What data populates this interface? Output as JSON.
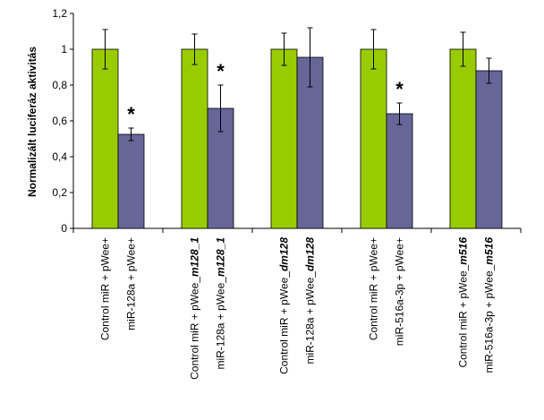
{
  "chart_data": {
    "type": "bar",
    "ylabel": "Normalizált luciferáz aktivitás",
    "ylim": [
      0,
      1.2
    ],
    "yticks": [
      "0",
      "0,2",
      "0,4",
      "0,6",
      "0,8",
      "1",
      "1,2"
    ],
    "grid": false,
    "colors": {
      "control": "#99cc00",
      "treatment": "#666699"
    },
    "bars": [
      {
        "label_parts": [
          {
            "t": "Control miR + pWee+"
          }
        ],
        "value": 1.0,
        "error": 0.11,
        "color": "control",
        "star": false
      },
      {
        "label_parts": [
          {
            "t": "miR-128a + pWee+"
          }
        ],
        "value": 0.525,
        "error": 0.035,
        "color": "treatment",
        "star": true
      },
      {
        "label_parts": [
          {
            "t": "Control miR + pWee_"
          },
          {
            "t": "m128_1",
            "i": true
          }
        ],
        "value": 1.0,
        "error": 0.085,
        "color": "control",
        "star": false
      },
      {
        "label_parts": [
          {
            "t": "miR-128a + pWee_"
          },
          {
            "t": "m128_1",
            "i": true
          }
        ],
        "value": 0.67,
        "error": 0.13,
        "color": "treatment",
        "star": true
      },
      {
        "label_parts": [
          {
            "t": "Control miR + pWee_"
          },
          {
            "t": "dm128",
            "i": true
          }
        ],
        "value": 1.0,
        "error": 0.09,
        "color": "control",
        "star": false
      },
      {
        "label_parts": [
          {
            "t": "miR-128a + pWee_"
          },
          {
            "t": "dm128",
            "i": true
          }
        ],
        "value": 0.955,
        "error": 0.165,
        "color": "treatment",
        "star": false
      },
      {
        "label_parts": [
          {
            "t": "Control miR + pWee+"
          }
        ],
        "value": 1.0,
        "error": 0.11,
        "color": "control",
        "star": false
      },
      {
        "label_parts": [
          {
            "t": "miR-516a-3p + pWee+"
          }
        ],
        "value": 0.64,
        "error": 0.06,
        "color": "treatment",
        "star": true
      },
      {
        "label_parts": [
          {
            "t": "Control miR + pWee_"
          },
          {
            "t": "m516",
            "i": true
          }
        ],
        "value": 1.0,
        "error": 0.095,
        "color": "control",
        "star": false
      },
      {
        "label_parts": [
          {
            "t": "miR-516a-3p + pWee_"
          },
          {
            "t": "m516",
            "i": true
          }
        ],
        "value": 0.88,
        "error": 0.07,
        "color": "treatment",
        "star": false
      }
    ],
    "star_symbol": "*"
  }
}
